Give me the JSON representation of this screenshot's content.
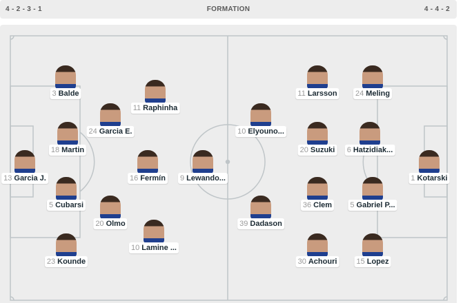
{
  "header": {
    "home_formation": "4 - 2 - 3 - 1",
    "title": "FORMATION",
    "away_formation": "4 - 4 - 2"
  },
  "colors": {
    "pitch": "#ededed",
    "lines": "#bfc5c8",
    "label_bg": "#ffffff"
  },
  "home_players": [
    {
      "number": "3",
      "name": "Balde"
    },
    {
      "number": "11",
      "name": "Raphinha"
    },
    {
      "number": "24",
      "name": "Garcia E."
    },
    {
      "number": "18",
      "name": "Martin"
    },
    {
      "number": "13",
      "name": "Garcia J."
    },
    {
      "number": "16",
      "name": "Fermín"
    },
    {
      "number": "9",
      "name": "Lewando..."
    },
    {
      "number": "5",
      "name": "Cubarsi"
    },
    {
      "number": "20",
      "name": "Olmo"
    },
    {
      "number": "10",
      "name": "Lamine ..."
    },
    {
      "number": "23",
      "name": "Kounde"
    }
  ],
  "away_players": [
    {
      "number": "11",
      "name": "Larsson"
    },
    {
      "number": "24",
      "name": "Meling"
    },
    {
      "number": "10",
      "name": "Elyouno..."
    },
    {
      "number": "20",
      "name": "Suzuki"
    },
    {
      "number": "6",
      "name": "Hatzidiak..."
    },
    {
      "number": "1",
      "name": "Kotarski"
    },
    {
      "number": "36",
      "name": "Clem"
    },
    {
      "number": "5",
      "name": "Gabriel P..."
    },
    {
      "number": "39",
      "name": "Dadason"
    },
    {
      "number": "30",
      "name": "Achouri"
    },
    {
      "number": "15",
      "name": "Lopez"
    }
  ]
}
